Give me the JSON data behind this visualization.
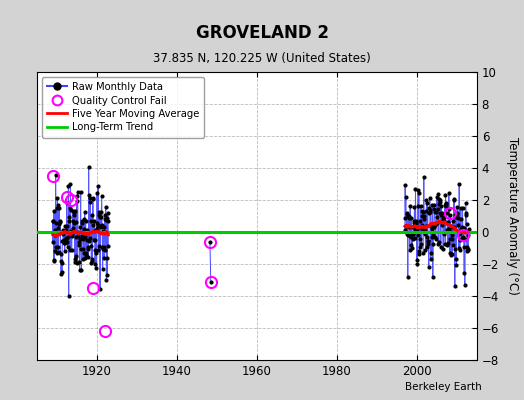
{
  "title": "GROVELAND 2",
  "subtitle": "37.835 N, 120.225 W (United States)",
  "ylabel": "Temperature Anomaly (°C)",
  "credit": "Berkeley Earth",
  "xlim": [
    1905,
    2015
  ],
  "ylim": [
    -8,
    10
  ],
  "yticks": [
    -8,
    -6,
    -4,
    -2,
    0,
    2,
    4,
    6,
    8,
    10
  ],
  "xticks": [
    1920,
    1940,
    1960,
    1980,
    2000
  ],
  "fig_bg_color": "#d3d3d3",
  "plot_bg_color": "#ffffff",
  "grid_color": "#bbbbbb",
  "five_year_ma_color": "#ff0000",
  "raw_line_color": "#4444ff",
  "raw_dot_color": "#000000",
  "qc_fail_color": "#ff00ff",
  "long_trend_color": "#00cc00",
  "early_start": 1909,
  "early_end": 1922,
  "late_start": 1997,
  "late_end": 2012,
  "iso_x1": 1948.3,
  "iso_y1": -0.6,
  "iso_x2": 1948.5,
  "iso_y2": -3.1,
  "long_term_y": 0.0
}
